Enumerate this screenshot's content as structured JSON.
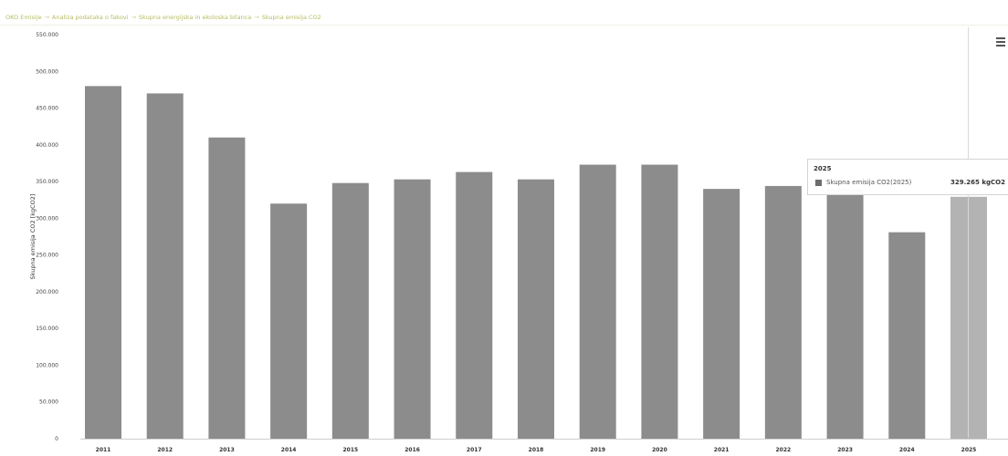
{
  "breadcrumb": {
    "items": [
      "OKO Emisije",
      "Analiza podataka o fakovi",
      "Skupna energijska in ekoloska bilanca",
      "Skupna emisija CO2"
    ],
    "separator": "→"
  },
  "chart_data": {
    "type": "bar",
    "title": "",
    "xlabel": "",
    "ylabel": "Skupna emisija CO2 [kgCO2]",
    "categories": [
      "2011",
      "2012",
      "2013",
      "2014",
      "2015",
      "2016",
      "2017",
      "2018",
      "2019",
      "2020",
      "2021",
      "2022",
      "2023",
      "2024",
      "2025"
    ],
    "values": [
      480000,
      470000,
      410000,
      320000,
      348000,
      353000,
      363000,
      353000,
      373000,
      373000,
      340000,
      344000,
      340000,
      281000,
      329265
    ],
    "ylim": [
      0,
      550000
    ],
    "yticks": [
      0,
      50000,
      100000,
      150000,
      200000,
      250000,
      300000,
      350000,
      400000,
      450000,
      500000,
      550000
    ],
    "ytick_labels": [
      "0",
      "50.000",
      "100.000",
      "150.000",
      "200.000",
      "250.000",
      "300.000",
      "350.000",
      "400.000",
      "450.000",
      "500.000",
      "550.000"
    ],
    "grid": false,
    "legend": "none",
    "colors": {
      "bar": "#8c8c8c",
      "bar_hover": "#b3b3b3"
    },
    "highlighted_category": "2025"
  },
  "tooltip": {
    "title": "2025",
    "series": "Skupna emisija CO2(2025)",
    "value": "329.265 kgCO2"
  },
  "icons": {
    "menu": "hamburger-menu-icon"
  }
}
